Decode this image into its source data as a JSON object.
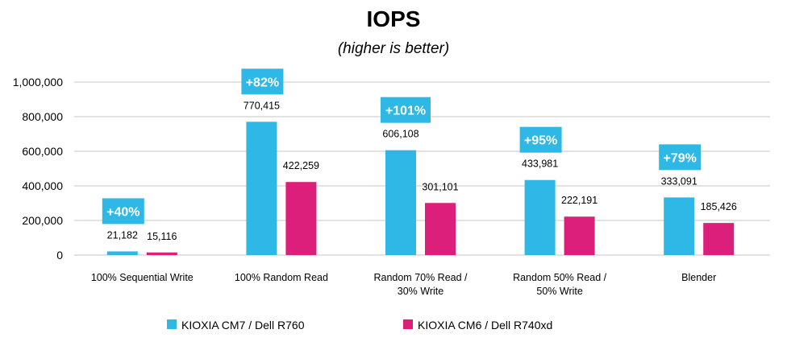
{
  "chart_data": {
    "type": "bar",
    "title": "IOPS",
    "subtitle": "(higher is better)",
    "xlabel": "",
    "ylabel": "",
    "ylim": [
      0,
      1000000
    ],
    "yticks": [
      0,
      200000,
      400000,
      600000,
      800000,
      1000000
    ],
    "ytick_labels": [
      "0",
      "200,000",
      "400,000",
      "600,000",
      "800,000",
      "1,000,000"
    ],
    "grid": true,
    "legend_position": "bottom",
    "categories": [
      [
        "100% Sequential Write"
      ],
      [
        "100% Random Read"
      ],
      [
        "Random 70% Read /",
        "30% Write"
      ],
      [
        "Random 50% Read /",
        "50% Write"
      ],
      [
        "Blender"
      ]
    ],
    "series": [
      {
        "name": "KIOXIA CM7 / Dell R760",
        "color": "#2FB8E6",
        "values": [
          21182,
          770415,
          606108,
          433981,
          333091
        ],
        "labels": [
          "21,182",
          "770,415",
          "606,108",
          "433,981",
          "333,091"
        ]
      },
      {
        "name": "KIOXIA CM6 / Dell R740xd",
        "color": "#DC1F7A",
        "values": [
          15116,
          422259,
          301101,
          222191,
          185426
        ],
        "labels": [
          "15,116",
          "422,259",
          "301,101",
          "222,191",
          "185,426"
        ]
      }
    ],
    "annotations": [
      "+40%",
      "+82%",
      "+101%",
      "+95%",
      "+79%"
    ],
    "annotation_color": "#2FB8E6"
  }
}
